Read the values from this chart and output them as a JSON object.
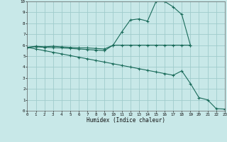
{
  "xlabel": "Humidex (Indice chaleur)",
  "bg_color": "#c8e8e8",
  "grid_color": "#a0cccc",
  "line_color": "#1a6b5a",
  "xlim": [
    0,
    23
  ],
  "ylim": [
    0,
    10
  ],
  "xticks": [
    0,
    1,
    2,
    3,
    4,
    5,
    6,
    7,
    8,
    9,
    10,
    11,
    12,
    13,
    14,
    15,
    16,
    17,
    18,
    19,
    20,
    21,
    22,
    23
  ],
  "yticks": [
    0,
    1,
    2,
    3,
    4,
    5,
    6,
    7,
    8,
    9,
    10
  ],
  "line1_x": [
    0,
    1,
    2,
    3,
    4,
    5,
    6,
    7,
    8,
    9,
    10,
    11,
    12,
    13,
    14,
    15,
    16,
    17,
    18,
    19
  ],
  "line1_y": [
    5.8,
    5.9,
    5.85,
    5.9,
    5.85,
    5.8,
    5.75,
    5.75,
    5.7,
    5.65,
    6.0,
    7.2,
    8.3,
    8.4,
    8.2,
    10.0,
    10.0,
    9.5,
    8.8,
    6.0
  ],
  "line2_x": [
    0,
    1,
    2,
    3,
    4,
    5,
    6,
    7,
    8,
    9,
    10,
    11,
    12,
    13,
    14,
    15,
    16,
    17,
    18,
    19
  ],
  "line2_y": [
    5.8,
    5.85,
    5.8,
    5.78,
    5.75,
    5.7,
    5.65,
    5.6,
    5.55,
    5.5,
    6.0,
    6.0,
    6.0,
    6.0,
    6.0,
    6.0,
    6.0,
    6.0,
    6.0,
    6.0
  ],
  "line3_x": [
    0,
    1,
    2,
    3,
    4,
    5,
    6,
    7,
    8,
    9,
    10,
    11,
    12,
    13,
    14,
    15,
    16,
    17,
    18,
    19,
    20,
    21,
    22,
    23
  ],
  "line3_y": [
    5.8,
    5.65,
    5.5,
    5.35,
    5.2,
    5.05,
    4.9,
    4.75,
    4.6,
    4.45,
    4.3,
    4.15,
    4.0,
    3.85,
    3.7,
    3.55,
    3.4,
    3.25,
    3.65,
    2.5,
    1.2,
    1.0,
    0.2,
    0.15
  ]
}
